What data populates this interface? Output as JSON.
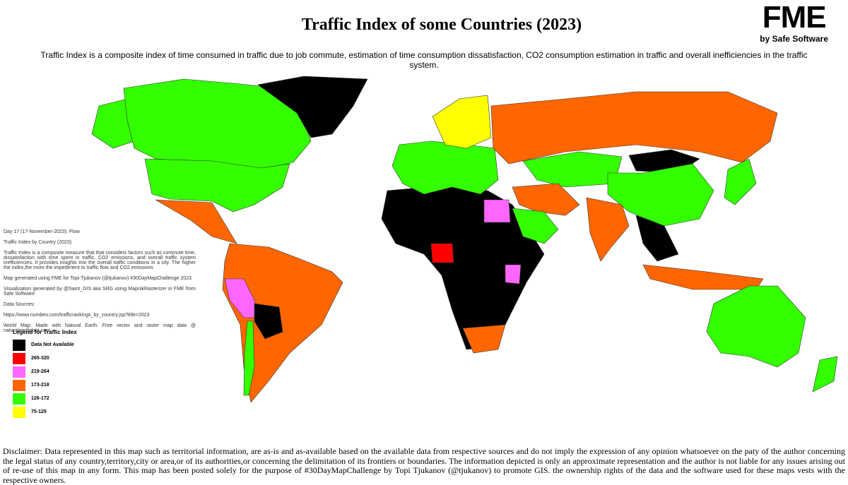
{
  "header": {
    "title": "Traffic Index of some Countries (2023)",
    "subtitle": "Traffic Index is a composite index of time consumed in traffic due to job commute, estimation of time consumption dissatisfaction, CO2 consumption estimation in traffic and overall inefficiencies in the traffic system."
  },
  "logo": {
    "name": "FME",
    "tagline": "by Safe Software"
  },
  "notes": [
    "Day 17 (17-November-2023): Flow",
    "Traffic Index by Country (2023)",
    "Traffic Index is a composite measure that that considers factors such as commute time, dissatisfaction with time spent in traffic, CO2 emissions, and overall traffic system inefficiencies. It provides insights into the overall traffic conditions in a city. The higher the index,the more the impediment to traffic flow and CO2 emissions",
    "Map generated using FME for Topi Tjukanov (@tjukanov) #30DayMapChallenge 2023",
    "Visualization generated by @Saint_GIS aka SRG using MapnikRasterizer in FME from Safe Software",
    "Data Sources:",
    "https://www.numbeo.com/trafficrankings_by_country.jsp?title=2023",
    "World Map: Made with Natural Earth. Free vector and raster map data @ naturalearthdata.com"
  ],
  "legend": {
    "title": "Legend for Traffic Index",
    "items": [
      {
        "label": "Data Not Available",
        "color": "#000000"
      },
      {
        "label": "265-320",
        "color": "#ff0000"
      },
      {
        "label": "219-264",
        "color": "#ff66ff"
      },
      {
        "label": "173-218",
        "color": "#ff6600"
      },
      {
        "label": "126-172",
        "color": "#33ff00"
      },
      {
        "label": "75-125",
        "color": "#ffff00"
      }
    ]
  },
  "disclaimer": "Disclaimer: Data represented in this map such as territorial information, are as-is and as-available based on the available data from respective sources and do not imply the expression of any opinion whatsoever on the paty of the author concerning the legal status of any country,territory,city or area,or of its authorities,or concerning the delimitation of its frontiers or boundaries. The information depicted is only an approximate representation and the author is not liable for any issues arising out of re-use of this map in any form. This map has been posted solely for the purpose of #30DayMapChallenge by Topi Tjukanov (@tjukanov) to promote GIS. the ownership rights of the data and the software used for these maps vests with the respective owners."
}
